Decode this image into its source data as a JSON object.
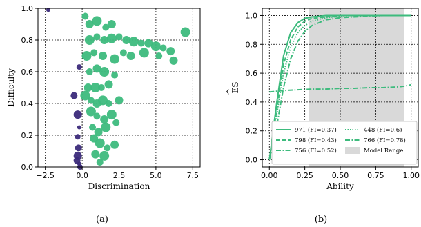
{
  "colors": {
    "green": "#3dbb7d",
    "purple": "#3b2a7a",
    "grid": "#000000",
    "range": "#d9d9d9"
  },
  "chart_data": [
    {
      "type": "scatter",
      "caption": "(a)",
      "xlabel": "Discrimination",
      "ylabel": "Difficulty",
      "xlim": [
        -3,
        8
      ],
      "ylim": [
        0,
        1
      ],
      "xticks": [
        -2.5,
        0,
        2.5,
        5,
        7.5
      ],
      "xtick_labels": [
        "−2.5",
        "0.0",
        "2.5",
        "5.0",
        "7.5"
      ],
      "yticks": [
        0,
        0.2,
        0.4,
        0.6,
        0.8,
        1.0
      ],
      "ytick_labels": [
        "0.0",
        "0.2",
        "0.4",
        "0.6",
        "0.8",
        "1.0"
      ],
      "grid": true,
      "series": [
        {
          "color": "purple",
          "points": [
            [
              -2.3,
              0.99
            ],
            [
              -0.2,
              0.63
            ],
            [
              -0.55,
              0.45
            ],
            [
              -0.3,
              0.33
            ],
            [
              -0.2,
              0.25
            ],
            [
              -0.3,
              0.19
            ],
            [
              -0.25,
              0.12
            ],
            [
              -0.3,
              0.07
            ],
            [
              -0.2,
              0.02
            ],
            [
              -0.15,
              0.0
            ],
            [
              -0.35,
              0.04
            ]
          ]
        },
        {
          "color": "green",
          "points": [
            [
              0.2,
              0.95
            ],
            [
              0.5,
              0.9
            ],
            [
              1.0,
              0.92
            ],
            [
              1.6,
              0.88
            ],
            [
              2.0,
              0.9
            ],
            [
              0.5,
              0.8
            ],
            [
              1.0,
              0.82
            ],
            [
              1.5,
              0.8
            ],
            [
              2.0,
              0.81
            ],
            [
              2.5,
              0.82
            ],
            [
              3.0,
              0.8
            ],
            [
              3.5,
              0.79
            ],
            [
              4.0,
              0.78
            ],
            [
              4.5,
              0.78
            ],
            [
              5.0,
              0.76
            ],
            [
              5.5,
              0.75
            ],
            [
              6.0,
              0.73
            ],
            [
              7.0,
              0.85
            ],
            [
              2.8,
              0.72
            ],
            [
              3.3,
              0.7
            ],
            [
              4.2,
              0.72
            ],
            [
              5.2,
              0.7
            ],
            [
              6.2,
              0.67
            ],
            [
              0.3,
              0.7
            ],
            [
              0.8,
              0.72
            ],
            [
              1.4,
              0.7
            ],
            [
              2.2,
              0.68
            ],
            [
              0.5,
              0.6
            ],
            [
              1.0,
              0.62
            ],
            [
              1.5,
              0.6
            ],
            [
              2.2,
              0.58
            ],
            [
              0.4,
              0.5
            ],
            [
              0.9,
              0.5
            ],
            [
              1.3,
              0.5
            ],
            [
              1.8,
              0.52
            ],
            [
              0.2,
              0.45
            ],
            [
              0.6,
              0.42
            ],
            [
              1.0,
              0.4
            ],
            [
              1.4,
              0.42
            ],
            [
              1.8,
              0.4
            ],
            [
              2.5,
              0.42
            ],
            [
              0.6,
              0.35
            ],
            [
              1.0,
              0.32
            ],
            [
              1.5,
              0.3
            ],
            [
              2.0,
              0.33
            ],
            [
              0.7,
              0.25
            ],
            [
              1.1,
              0.22
            ],
            [
              1.6,
              0.25
            ],
            [
              2.3,
              0.28
            ],
            [
              0.8,
              0.18
            ],
            [
              1.2,
              0.15
            ],
            [
              1.7,
              0.12
            ],
            [
              0.9,
              0.08
            ],
            [
              1.5,
              0.07
            ],
            [
              1.2,
              0.03
            ],
            [
              2.2,
              0.14
            ]
          ]
        }
      ]
    },
    {
      "type": "line",
      "caption": "(b)",
      "xlabel": "Ability",
      "ylabel": "ES",
      "xlim": [
        -0.05,
        1.05
      ],
      "ylim": [
        -0.05,
        1.05
      ],
      "xticks": [
        0,
        0.25,
        0.5,
        0.75,
        1.0
      ],
      "xtick_labels": [
        "0.00",
        "0.25",
        "0.50",
        "0.75",
        "1.00"
      ],
      "yticks": [
        0,
        0.2,
        0.4,
        0.6,
        0.8,
        1.0
      ],
      "ytick_labels": [
        "0.0",
        "0.2",
        "0.4",
        "0.6",
        "0.8",
        "1.0"
      ],
      "grid": true,
      "range": {
        "label": "Model Range",
        "x0": 0.28,
        "x1": 0.95
      },
      "legend_position": "lower-right",
      "series": [
        {
          "name": "971 (FI=0.37)",
          "dash": "solid",
          "x": [
            0,
            0.05,
            0.1,
            0.15,
            0.2,
            0.25,
            0.3,
            0.4,
            0.5,
            0.6,
            0.8,
            1.0
          ],
          "y": [
            0.0,
            0.38,
            0.72,
            0.88,
            0.95,
            0.98,
            0.99,
            1.0,
            1.0,
            1.0,
            1.0,
            1.0
          ]
        },
        {
          "name": "448 (FI=0.6)",
          "dash": "dotted",
          "x": [
            0,
            0.05,
            0.1,
            0.15,
            0.2,
            0.25,
            0.3,
            0.4,
            0.5,
            0.6,
            0.8,
            1.0
          ],
          "y": [
            0.0,
            0.3,
            0.6,
            0.78,
            0.88,
            0.93,
            0.96,
            0.985,
            0.995,
            1.0,
            1.0,
            1.0
          ]
        },
        {
          "name": "798 (FI=0.43)",
          "dash": "dashed",
          "x": [
            0,
            0.05,
            0.1,
            0.15,
            0.2,
            0.25,
            0.3,
            0.4,
            0.5,
            0.6,
            0.8,
            1.0
          ],
          "y": [
            0.0,
            0.33,
            0.66,
            0.83,
            0.92,
            0.96,
            0.98,
            0.99,
            1.0,
            1.0,
            1.0,
            1.0
          ]
        },
        {
          "name": "766 (FI=0.78)",
          "dash": "dashdot",
          "x": [
            0,
            0.1,
            0.2,
            0.3,
            0.4,
            0.5,
            0.6,
            0.7,
            0.8,
            0.9,
            0.95,
            1.0
          ],
          "y": [
            0.47,
            0.48,
            0.485,
            0.49,
            0.49,
            0.495,
            0.495,
            0.5,
            0.5,
            0.505,
            0.51,
            0.52
          ]
        },
        {
          "name": "756 (FI=0.52)",
          "dash": "dashdot",
          "x": [
            0,
            0.05,
            0.1,
            0.15,
            0.2,
            0.25,
            0.3,
            0.4,
            0.5,
            0.6,
            0.8,
            1.0
          ],
          "y": [
            0.0,
            0.22,
            0.5,
            0.7,
            0.82,
            0.89,
            0.93,
            0.97,
            0.985,
            0.99,
            1.0,
            1.0
          ]
        }
      ]
    }
  ]
}
